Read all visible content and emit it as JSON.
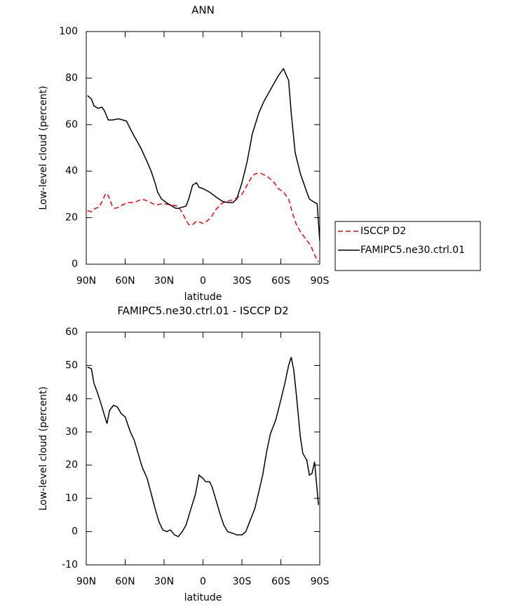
{
  "chart_data": [
    {
      "type": "line",
      "title": "ANN",
      "xlabel": "latitude",
      "ylabel": "Low-level cloud (percent)",
      "xlim": [
        90,
        -90
      ],
      "xticks": [
        {
          "value": 90,
          "label": "90N"
        },
        {
          "value": 60,
          "label": "60N"
        },
        {
          "value": 30,
          "label": "30N"
        },
        0,
        {
          "value": -30,
          "label": "30S"
        },
        {
          "value": -60,
          "label": "60S"
        },
        {
          "value": -90,
          "label": "90S"
        }
      ],
      "ylim": [
        0,
        100
      ],
      "yticks": [
        0,
        20,
        40,
        60,
        80,
        100
      ],
      "legend": "outside-right",
      "series": [
        {
          "name": "ISCCP D2",
          "color": "#ff0000",
          "dashed": true,
          "x": [
            89,
            86,
            83,
            80,
            77,
            75,
            73,
            70,
            68,
            65,
            62,
            58,
            53,
            47,
            42,
            37,
            30,
            25,
            20,
            17,
            14,
            11,
            8,
            5,
            2,
            0,
            -3,
            -6,
            -10,
            -14,
            -18,
            -22,
            -26,
            -30,
            -34,
            -38,
            -41,
            -45,
            -50,
            -55,
            -58,
            -62,
            -66,
            -69,
            -72,
            -75,
            -79,
            -83,
            -86,
            -89
          ],
          "values": [
            23,
            22.5,
            24,
            24.5,
            28,
            30.5,
            29.5,
            25,
            24,
            24.5,
            25.5,
            26.5,
            26.5,
            28,
            27,
            25.5,
            26,
            25.5,
            25,
            23,
            20,
            17,
            17,
            18.5,
            18,
            17.5,
            18.5,
            20,
            23.5,
            26,
            27,
            27.5,
            28.5,
            30,
            34,
            38,
            39,
            39,
            37.5,
            35,
            32.5,
            31,
            28,
            22,
            17,
            14,
            11,
            8,
            4,
            1
          ]
        },
        {
          "name": "FAMIPC5.ne30.ctrl.01",
          "color": "#000000",
          "dashed": false,
          "x": [
            89,
            86,
            84,
            81,
            78,
            76,
            73,
            70,
            65,
            59,
            54,
            48,
            43,
            40,
            37,
            35,
            32,
            27,
            21,
            19,
            13,
            11,
            8,
            5,
            3,
            0,
            -5,
            -11,
            -15,
            -19,
            -23,
            -26,
            -30,
            -34,
            -38,
            -43,
            -47,
            -52,
            -58,
            -62,
            -66,
            -68,
            -71,
            -75,
            -80,
            -82,
            -86,
            -88,
            -90
          ],
          "values": [
            72.5,
            71,
            68,
            67,
            67.5,
            66,
            62,
            62,
            62.5,
            61.5,
            56,
            50,
            44,
            40,
            35,
            31,
            28,
            26,
            24,
            24,
            25,
            28,
            34,
            35,
            33,
            32.5,
            31,
            28.5,
            27,
            26.5,
            26.5,
            28,
            35,
            44,
            56,
            65,
            70,
            75,
            81,
            84,
            79,
            65,
            48,
            39,
            31,
            28,
            26.5,
            26,
            10
          ]
        }
      ]
    },
    {
      "type": "line",
      "title": "FAMIPC5.ne30.ctrl.01 - ISCCP D2",
      "xlabel": "latitude",
      "ylabel": "Low-level cloud (percent)",
      "xlim": [
        90,
        -90
      ],
      "xticks": [
        {
          "value": 90,
          "label": "90N"
        },
        {
          "value": 60,
          "label": "60N"
        },
        {
          "value": 30,
          "label": "30N"
        },
        0,
        {
          "value": -30,
          "label": "30S"
        },
        {
          "value": -60,
          "label": "60S"
        },
        {
          "value": -90,
          "label": "90S"
        }
      ],
      "ylim": [
        -10,
        60
      ],
      "yticks": [
        -10,
        0,
        10,
        20,
        30,
        40,
        50,
        60
      ],
      "series": [
        {
          "color": "#000000",
          "dashed": false,
          "x": [
            89,
            86,
            84,
            82,
            79,
            76,
            74,
            72,
            69,
            66,
            63,
            60,
            56,
            53,
            50,
            47,
            43,
            40,
            37,
            34,
            31,
            28,
            25,
            22,
            19,
            16,
            13,
            10,
            6,
            3,
            0,
            -2,
            -5,
            -7,
            -10,
            -13,
            -16,
            -19,
            -23,
            -26,
            -30,
            -33,
            -36,
            -40,
            -43,
            -46,
            -49,
            -52,
            -56,
            -59,
            -63,
            -66,
            -68,
            -70,
            -72,
            -75,
            -77,
            -80,
            -82,
            -84,
            -86,
            -89
          ],
          "values": [
            49.5,
            49,
            44.5,
            42.5,
            39,
            35,
            32.5,
            36.5,
            38,
            37.5,
            35.5,
            34.5,
            30,
            27.5,
            23.5,
            19.5,
            16,
            11.5,
            7,
            3,
            0.5,
            0,
            0.5,
            -1,
            -1.5,
            0,
            2,
            6,
            11,
            17,
            16,
            15,
            15,
            13.5,
            9.5,
            5.5,
            2,
            0,
            -0.5,
            -1,
            -1,
            0,
            3,
            7,
            12,
            17,
            24,
            29.5,
            33.5,
            38,
            44.5,
            50,
            52.5,
            48.5,
            41,
            28.5,
            23.5,
            21.5,
            17,
            17.5,
            21,
            8
          ]
        }
      ]
    }
  ]
}
